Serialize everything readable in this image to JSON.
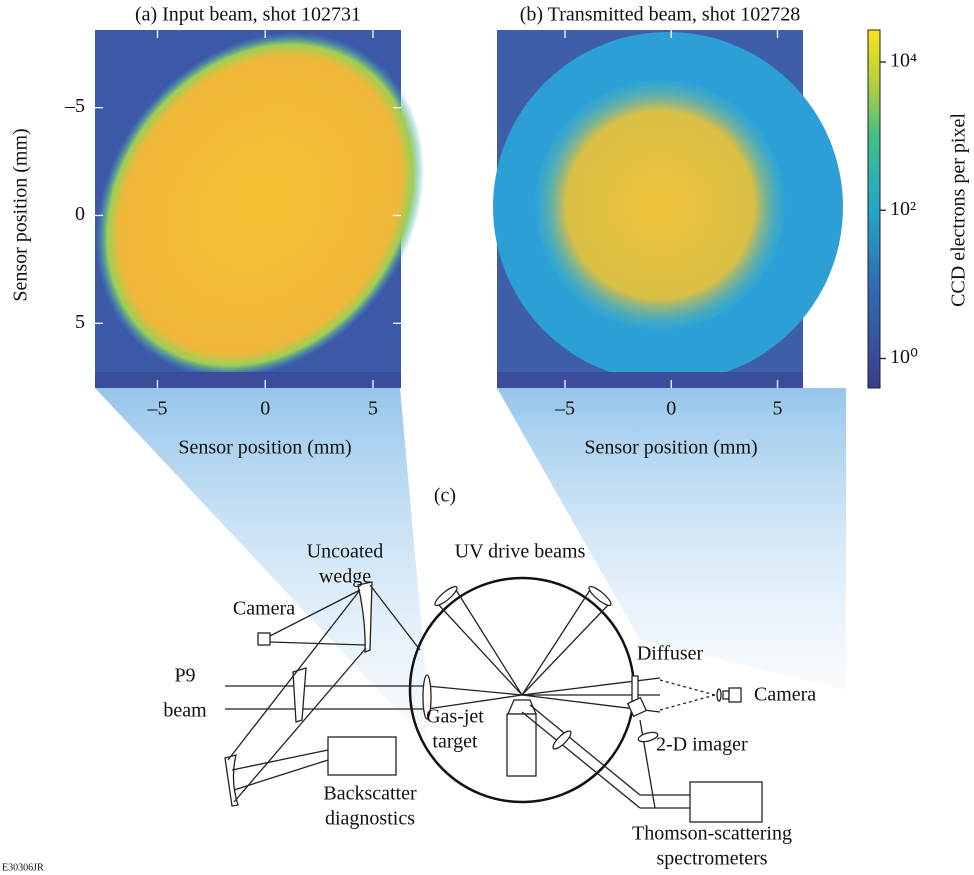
{
  "panels": [
    {
      "title": "(a) Input beam, shot 102731",
      "xlabel": "Sensor position (mm)",
      "ylabel": "Sensor position (mm)",
      "xlim": [
        -7.9,
        6.3
      ],
      "ylim": [
        -8.6,
        8
      ],
      "xticks": [
        {
          "value": -5,
          "label": "–5"
        },
        0,
        5
      ],
      "yticks": [
        {
          "value": -5,
          "label": "–5"
        },
        0,
        5
      ]
    },
    {
      "title": "(b) Transmitted beam, shot 102728",
      "xlabel": "Sensor position (mm)",
      "xlim": [
        -8.2,
        6.2
      ],
      "ylim": [
        -8.6,
        8
      ],
      "xticks": [
        {
          "value": -5,
          "label": "–5"
        },
        0,
        5
      ]
    }
  ],
  "colorbar": {
    "label": "CCD electrons per pixel",
    "log": true,
    "lim": [
      0.4,
      27000
    ],
    "ticks": [
      {
        "value": 1,
        "label": "10⁰"
      },
      {
        "value": 100,
        "label": "10²"
      },
      {
        "value": 10000,
        "label": "10⁴"
      }
    ]
  },
  "diagram": {
    "panel_label": "(c)",
    "uncoated_wedge": [
      "Uncoated",
      "wedge"
    ],
    "uv_drive_beams": "UV drive beams",
    "camera_left": "Camera",
    "p9_beam": [
      "P9",
      "beam"
    ],
    "gas_jet_target": [
      "Gas-jet",
      "target"
    ],
    "diffuser": "Diffuser",
    "camera_right": "Camera",
    "two_d_imager": "2-D imager",
    "backscatter": [
      "Backscatter",
      "diagnostics"
    ],
    "thomson": [
      "Thomson-scattering",
      "spectrometers"
    ]
  },
  "figure_id": "E30306JR"
}
